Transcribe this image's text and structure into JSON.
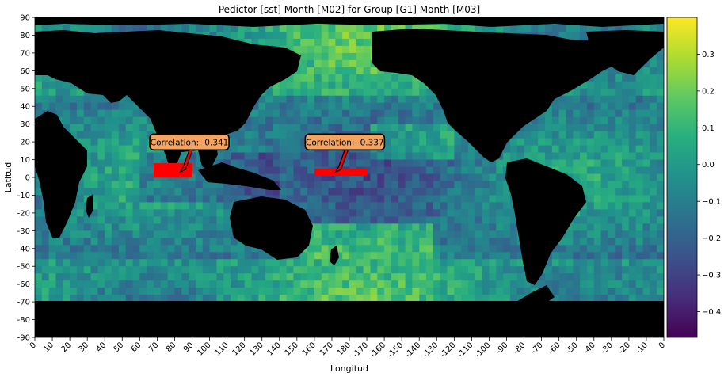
{
  "chart_data": {
    "type": "heatmap",
    "title": "Pedictor [sst] Month [M02] for Group [G1] Month [M03]",
    "xlabel": "Longitud",
    "ylabel": "Latitud",
    "x_ticks": [
      "0",
      "10",
      "20",
      "30",
      "40",
      "50",
      "60",
      "70",
      "80",
      "90",
      "100",
      "110",
      "120",
      "130",
      "140",
      "150",
      "160",
      "170",
      "180",
      "-170",
      "-160",
      "-150",
      "-140",
      "-130",
      "-120",
      "-110",
      "-100",
      "-90",
      "-80",
      "-70",
      "-60",
      "-50",
      "-40",
      "-30",
      "-20",
      "-10",
      "0"
    ],
    "y_ticks": [
      "90",
      "80",
      "70",
      "60",
      "50",
      "40",
      "30",
      "20",
      "10",
      "0",
      "-10",
      "-20",
      "-30",
      "-40",
      "-50",
      "-60",
      "-70",
      "-80",
      "-90"
    ],
    "xlim": [
      0,
      360
    ],
    "ylim": [
      -90,
      90
    ],
    "colormap": "viridis",
    "colorbar": {
      "range": [
        -0.47,
        0.4
      ],
      "ticks": [
        "0.3",
        "0.2",
        "0.1",
        "0.0",
        "−0.1",
        "−0.2",
        "−0.3",
        "−0.4"
      ],
      "tick_values": [
        0.3,
        0.2,
        0.1,
        0.0,
        -0.1,
        -0.2,
        -0.3,
        -0.4
      ]
    },
    "land_color": "#000000",
    "highlight_color": "#ff0000",
    "annotations": [
      {
        "text": "Correlation: -0.341",
        "lon": 83,
        "lat": 3
      },
      {
        "text": "Correlation: -0.337",
        "lon": 172,
        "lat": 3
      }
    ],
    "highlight_regions": [
      {
        "lon_min": 68,
        "lon_max": 90,
        "lat_min": 0,
        "lat_max": 7
      },
      {
        "lon_min": 160,
        "lon_max": 190,
        "lat_min": 1,
        "lat_max": 5
      }
    ]
  }
}
